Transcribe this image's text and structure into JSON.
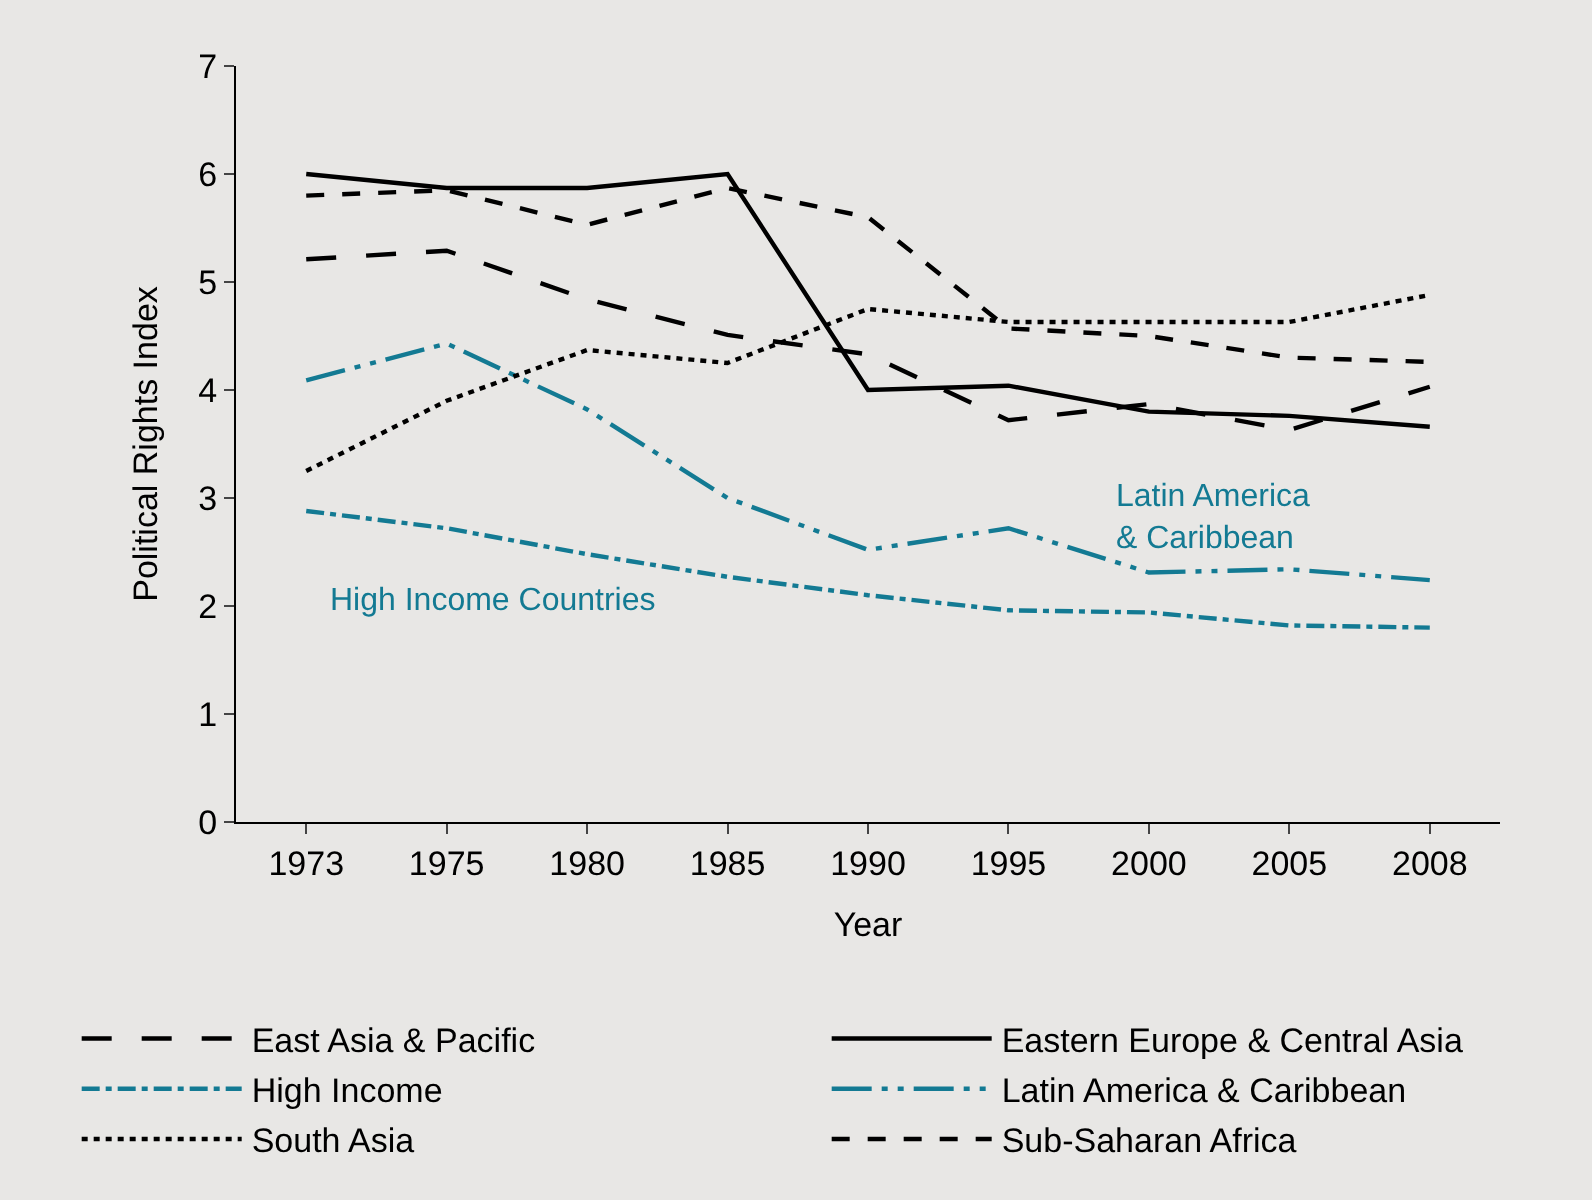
{
  "chart_data": {
    "type": "line",
    "xlabel": "Year",
    "ylabel": "Political Rights Index",
    "categories": [
      "1973",
      "1975",
      "1980",
      "1985",
      "1990",
      "1995",
      "2000",
      "2005",
      "2008"
    ],
    "ylim": [
      0,
      7
    ],
    "yticks": [
      0,
      1,
      2,
      3,
      4,
      5,
      6,
      7
    ],
    "grid": false,
    "legend": "bottom",
    "marker": "none",
    "series": [
      {
        "name": "East Asia & Pacific",
        "color": "#000000",
        "line_style": "longdash",
        "values": [
          5.21,
          5.29,
          4.84,
          4.51,
          4.33,
          3.72,
          3.87,
          3.63,
          4.03
        ]
      },
      {
        "name": "Eastern Europe & Central Asia",
        "color": "#000000",
        "line_style": "solid",
        "values": [
          6.0,
          5.87,
          5.87,
          6.0,
          4.0,
          4.04,
          3.8,
          3.76,
          3.66
        ]
      },
      {
        "name": "High Income",
        "color": "#137a93",
        "line_style": "dashdot",
        "values": [
          2.88,
          2.72,
          2.48,
          2.27,
          2.1,
          1.96,
          1.94,
          1.82,
          1.8
        ]
      },
      {
        "name": "Latin America & Caribbean",
        "color": "#137a93",
        "line_style": "dashdotdot",
        "values": [
          4.09,
          4.43,
          3.82,
          3.0,
          2.52,
          2.72,
          2.31,
          2.34,
          2.24
        ]
      },
      {
        "name": "South Asia",
        "color": "#000000",
        "line_style": "dotted",
        "values": [
          3.25,
          3.9,
          4.37,
          4.25,
          4.75,
          4.63,
          4.63,
          4.63,
          4.88
        ]
      },
      {
        "name": "Sub-Saharan Africa",
        "color": "#000000",
        "line_style": "dashed",
        "values": [
          5.8,
          5.85,
          5.53,
          5.87,
          5.6,
          4.57,
          4.5,
          4.3,
          4.26
        ]
      }
    ],
    "annotations": [
      "High Income Countries",
      "Latin America\n& Caribbean"
    ]
  }
}
